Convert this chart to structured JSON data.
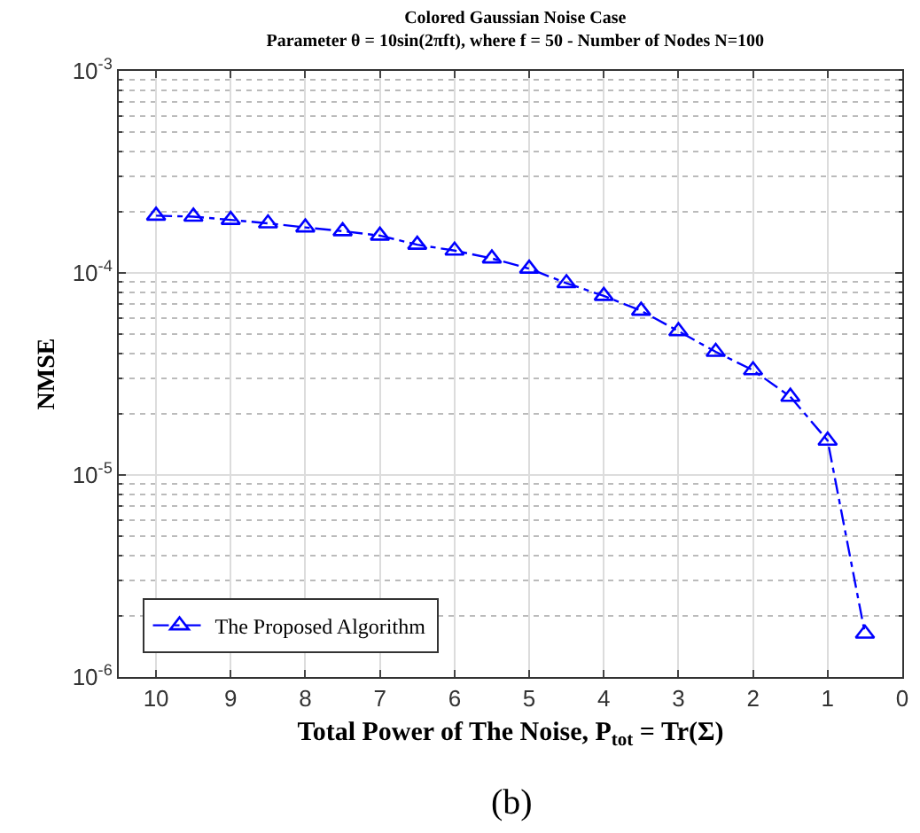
{
  "chart_data": {
    "type": "line",
    "title": "Colored Gaussian Noise Case",
    "subtitle": "Parameter θ = 10sin(2πft), where f = 50 - Number of Nodes N=100",
    "xlabel": "Total Power of The Noise, P$_{tot}$ = Tr(Σ)",
    "ylabel": "NMSE",
    "x": [
      10,
      9.5,
      9,
      8.5,
      8,
      7.5,
      7,
      6.5,
      6,
      5.5,
      5,
      4.5,
      4,
      3.5,
      3,
      2.5,
      2,
      1.5,
      1,
      0.5
    ],
    "series": [
      {
        "name": "The Proposed Algorithm",
        "color": "#0000ff",
        "values": [
          0.000192,
          0.00019,
          0.000183,
          0.000176,
          0.000168,
          0.000161,
          0.000153,
          0.000138,
          0.000129,
          0.000118,
          0.000105,
          8.9e-05,
          7.7e-05,
          6.5e-05,
          5.15e-05,
          4.07e-05,
          3.3e-05,
          2.44e-05,
          1.48e-05,
          1.64e-06
        ]
      }
    ],
    "xlim": [
      10.5,
      0
    ],
    "xticks": [
      10,
      9,
      8,
      7,
      6,
      5,
      4,
      3,
      2,
      1,
      0
    ],
    "ylim": [
      1e-06,
      0.001
    ],
    "yticks": [
      {
        "value": 1e-06,
        "label": "10$^{-6}$"
      },
      {
        "value": 1e-05,
        "label": "10$^{-5}$"
      },
      {
        "value": 0.0001,
        "label": "10$^{-4}$"
      },
      {
        "value": 0.001,
        "label": "10$^{-3}$"
      }
    ],
    "log": "y",
    "grid": true,
    "legend": "bottom left",
    "marker": "triangle",
    "line_style": "dashdot",
    "annotations": [
      "(b)"
    ]
  }
}
